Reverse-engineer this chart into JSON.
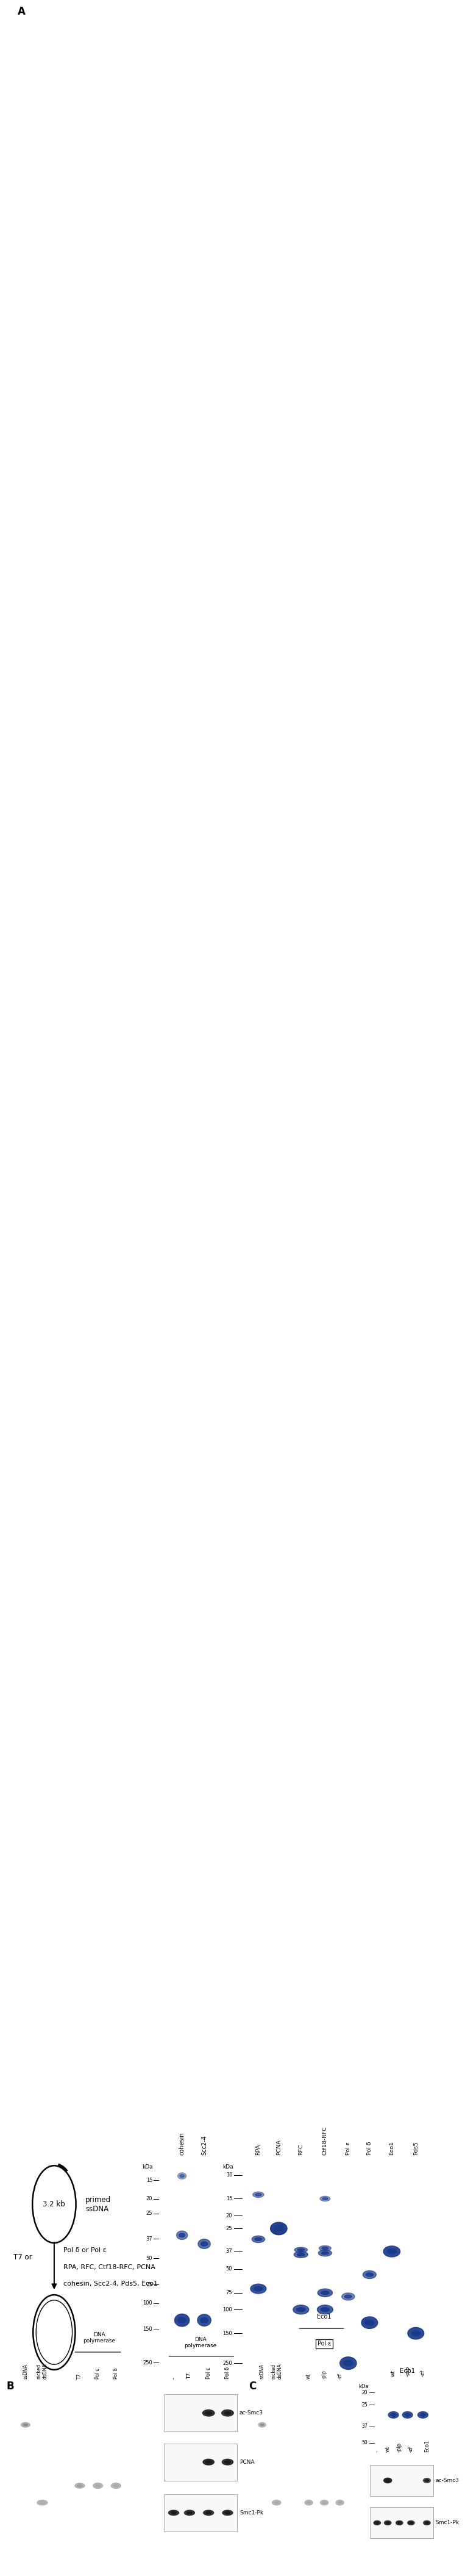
{
  "bg": "#ffffff",
  "gel_bg_light": "#ddeef8",
  "gel_bg_dark": "#080808",
  "wb_bg": "#f5f5f5",
  "band_blue": "#1a3a8a",
  "band_blue2": "#2255bb",
  "band_white": "#cccccc",
  "band_dark": "#1a1a1a",
  "diag_circle_text": "3.2 kb",
  "diag_text1": "primed\nssDNA",
  "diag_text2": "T7 or",
  "diag_text3a": "Pol δ or Pol ε",
  "diag_text3b": "RPA, RFC, Ctf18-RFC, PCNA",
  "diag_text4": "cohesin, Scc2-4, Pds5, Eco1",
  "gel1_lanes": [
    "cohesin",
    "Scc2-4"
  ],
  "gel1_markers": [
    250,
    150,
    100,
    75,
    50,
    37,
    25,
    20,
    15
  ],
  "gel2_lanes": [
    "RPA",
    "PCNA",
    "RFC",
    "Ctf18-RFC",
    "Pol ε",
    "Pol δ",
    "Eco1",
    "Pds5"
  ],
  "gel2_markers": [
    250,
    150,
    100,
    75,
    50,
    37,
    25,
    20,
    15,
    10
  ],
  "panB_lanes": [
    "ssDNA",
    "nicked\ndsDNA",
    "",
    "T7",
    "Pol ε",
    "Pol δ"
  ],
  "panB_wb_lanes": [
    "-",
    "T7",
    "Pol ε",
    "Pol δ"
  ],
  "panB_wb_labels": [
    "ac-Smc3",
    "PCNA",
    "Smc1-Pk"
  ],
  "panC_lanes": [
    "ssDNA",
    "nicked\ndsDNA",
    "",
    "wt",
    "-pip",
    "-zf"
  ],
  "panC_eco_lanes": [
    "wt",
    "-pip",
    "-zf"
  ],
  "panC_wb_lanes": [
    "-",
    "wt",
    "-pip",
    "-zf",
    "Eco1"
  ],
  "panC_wb_labels": [
    "ac-Smc3",
    "Smc1-Pk"
  ],
  "panC_prot_markers": [
    50,
    37,
    25,
    20
  ]
}
